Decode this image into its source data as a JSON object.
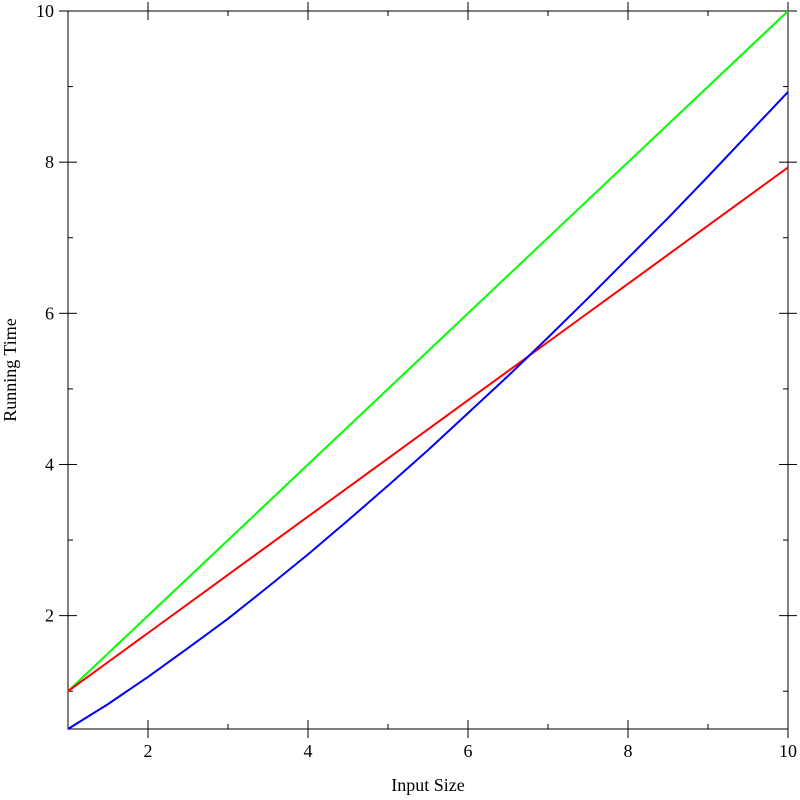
{
  "chart_data": {
    "type": "line",
    "title": "",
    "xlabel": "Input Size",
    "ylabel": "Running Time",
    "xlim": [
      1,
      10
    ],
    "ylim": [
      0.5,
      10
    ],
    "grid": false,
    "x_ticks": [
      {
        "value": 2,
        "label": "2"
      },
      {
        "value": 4,
        "label": "4"
      },
      {
        "value": 6,
        "label": "6"
      },
      {
        "value": 8,
        "label": "8"
      },
      {
        "value": 10,
        "label": "10"
      }
    ],
    "y_ticks": [
      {
        "value": 2,
        "label": "2"
      },
      {
        "value": 4,
        "label": "4"
      },
      {
        "value": 6,
        "label": "6"
      },
      {
        "value": 8,
        "label": "8"
      },
      {
        "value": 10,
        "label": "10"
      }
    ],
    "x_minor_ticks": [
      1,
      3,
      5,
      7,
      9
    ],
    "y_minor_ticks": [
      1,
      3,
      5,
      7,
      9
    ],
    "series": [
      {
        "color": "#00ff00",
        "x": [
          1,
          2,
          3,
          4,
          5,
          6,
          7,
          8,
          9,
          10
        ],
        "y": [
          1,
          2,
          3,
          4,
          5,
          6,
          7,
          8,
          9,
          10
        ]
      },
      {
        "color": "#ff0000",
        "x": [
          1,
          2,
          3,
          4,
          5,
          6,
          7,
          8,
          9,
          10
        ],
        "y": [
          1,
          1.77,
          2.54,
          3.31,
          4.08,
          4.85,
          5.62,
          6.39,
          7.16,
          7.93
        ]
      },
      {
        "color": "#0000ff",
        "x": [
          1,
          1.5,
          2,
          2.5,
          3,
          3.5,
          4,
          4.5,
          5,
          5.5,
          6,
          6.5,
          7,
          7.5,
          8,
          8.5,
          9,
          9.5,
          10
        ],
        "y": [
          0.5,
          0.83,
          1.19,
          1.57,
          1.96,
          2.38,
          2.81,
          3.26,
          3.72,
          4.19,
          4.68,
          5.17,
          5.68,
          6.2,
          6.73,
          7.26,
          7.81,
          8.37,
          8.93
        ]
      }
    ]
  }
}
